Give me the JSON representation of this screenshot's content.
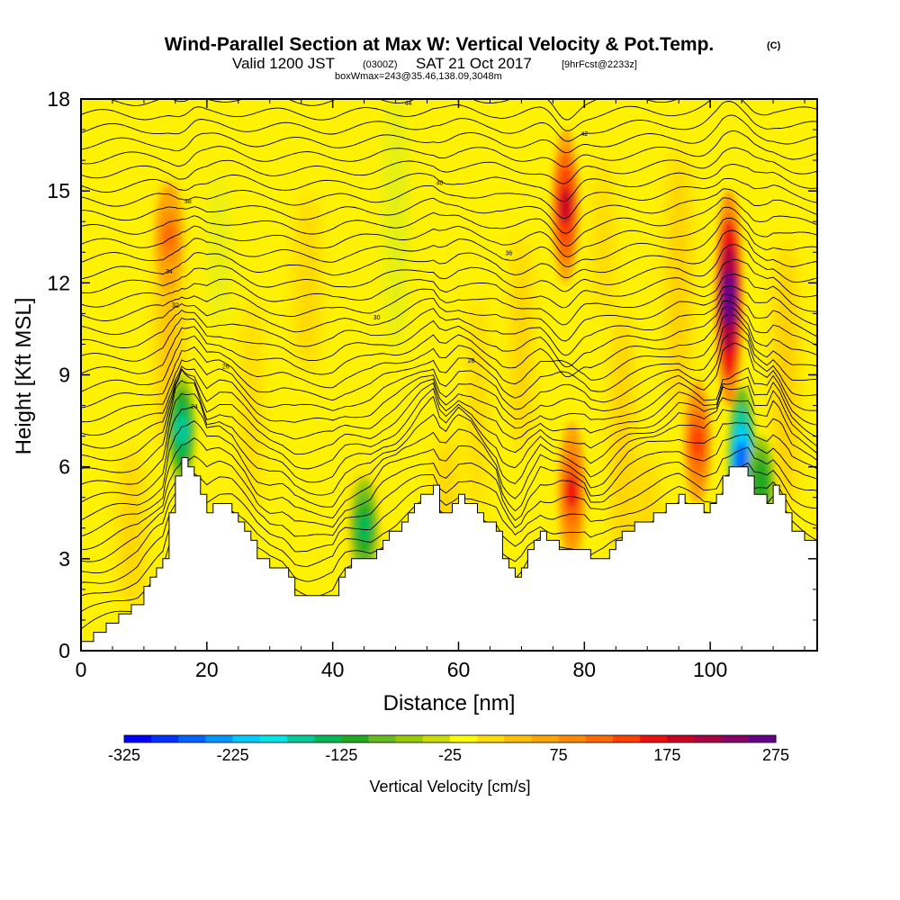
{
  "header": {
    "title": "Wind-Parallel Section at Max W: Vertical Velocity & Pot.Temp.",
    "copyright": "(C)",
    "valid_prefix": "Valid 1200 JST",
    "valid_utc": "(0300Z)",
    "valid_date": "SAT 21 Oct 2017",
    "forecast": "[9hrFcst@2233z]",
    "box_info": "boxWmax=243@35.46,138.09,3048m"
  },
  "chart_data": {
    "type": "heatmap",
    "xlabel": "Distance [nm]",
    "ylabel": "Height [Kft MSL]",
    "xlim": [
      0,
      117
    ],
    "ylim": [
      0,
      18
    ],
    "x_ticks": [
      "0",
      "20",
      "40",
      "60",
      "80",
      "100"
    ],
    "y_ticks": [
      "0",
      "3",
      "6",
      "9",
      "12",
      "15",
      "18"
    ],
    "colorbar": {
      "label": "Vertical Velocity [cm/s]",
      "tick_labels": [
        "-325",
        "-225",
        "-125",
        "-25",
        "75",
        "175",
        "275"
      ],
      "range": [
        -325,
        275
      ],
      "colors": [
        "#0000ff",
        "#0033ff",
        "#0066ff",
        "#0099ff",
        "#00ccff",
        "#00e5e5",
        "#00cc99",
        "#00bb55",
        "#22aa22",
        "#66bb22",
        "#99cc00",
        "#ccdd00",
        "#ffff00",
        "#ffdd00",
        "#ffc000",
        "#ffa500",
        "#ff8c00",
        "#ff6a00",
        "#ff4000",
        "#ee1010",
        "#cc0022",
        "#aa0044",
        "#880066",
        "#660088"
      ]
    },
    "terrain_kft": [
      [
        0,
        0.3
      ],
      [
        3,
        0.7
      ],
      [
        6,
        1.2
      ],
      [
        9,
        1.6
      ],
      [
        11,
        2.3
      ],
      [
        13,
        3.0
      ],
      [
        14,
        4.5
      ],
      [
        15,
        5.6
      ],
      [
        16,
        6.2
      ],
      [
        18,
        5.8
      ],
      [
        19,
        5.2
      ],
      [
        20,
        4.6
      ],
      [
        22,
        4.8
      ],
      [
        24,
        4.6
      ],
      [
        26,
        3.9
      ],
      [
        28,
        3.1
      ],
      [
        30,
        2.7
      ],
      [
        32,
        2.6
      ],
      [
        33,
        2.3
      ],
      [
        34,
        1.9
      ],
      [
        36,
        1.7
      ],
      [
        38,
        1.7
      ],
      [
        40,
        1.8
      ],
      [
        41,
        2.4
      ],
      [
        42,
        2.8
      ],
      [
        44,
        3.0
      ],
      [
        46,
        3.1
      ],
      [
        48,
        3.7
      ],
      [
        50,
        4.0
      ],
      [
        52,
        4.5
      ],
      [
        54,
        5.0
      ],
      [
        56,
        5.3
      ],
      [
        57,
        4.6
      ],
      [
        58,
        4.4
      ],
      [
        60,
        5.0
      ],
      [
        62,
        4.8
      ],
      [
        64,
        4.3
      ],
      [
        66,
        3.8
      ],
      [
        67,
        3.0
      ],
      [
        68,
        2.6
      ],
      [
        69,
        2.3
      ],
      [
        70,
        2.6
      ],
      [
        71,
        3.2
      ],
      [
        73,
        3.9
      ],
      [
        75,
        3.5
      ],
      [
        77,
        3.3
      ],
      [
        79,
        3.3
      ],
      [
        80,
        3.3
      ],
      [
        81,
        2.9
      ],
      [
        83,
        3.1
      ],
      [
        85,
        3.6
      ],
      [
        87,
        4.0
      ],
      [
        89,
        4.2
      ],
      [
        91,
        4.4
      ],
      [
        93,
        4.7
      ],
      [
        95,
        5.0
      ],
      [
        97,
        4.8
      ],
      [
        99,
        4.6
      ],
      [
        101,
        5.0
      ],
      [
        102,
        5.8
      ],
      [
        104,
        5.9
      ],
      [
        106,
        5.8
      ],
      [
        107,
        5.1
      ],
      [
        109,
        4.9
      ],
      [
        110,
        5.3
      ],
      [
        111,
        5.0
      ],
      [
        113,
        4.0
      ],
      [
        115,
        3.6
      ],
      [
        117,
        3.3
      ]
    ],
    "isentropes_label_values": [
      "44",
      "42",
      "40",
      "38",
      "36",
      "34",
      "32",
      "30",
      "28",
      "26",
      "24"
    ],
    "updraft_cores_cm_s": [
      {
        "x_nm": 103,
        "z_kft": 11.5,
        "w": 275
      },
      {
        "x_nm": 77,
        "z_kft": 14.5,
        "w": 175
      },
      {
        "x_nm": 78,
        "z_kft": 5.2,
        "w": 150
      },
      {
        "x_nm": 98,
        "z_kft": 6.8,
        "w": 125
      },
      {
        "x_nm": 14,
        "z_kft": 13.5,
        "w": 100
      }
    ],
    "downdraft_cores_cm_s": [
      {
        "x_nm": 105,
        "z_kft": 6.2,
        "w": -275
      },
      {
        "x_nm": 16,
        "z_kft": 7.2,
        "w": -175
      },
      {
        "x_nm": 45,
        "z_kft": 4.0,
        "w": -150
      },
      {
        "x_nm": 108,
        "z_kft": 5.5,
        "w": -125
      }
    ]
  }
}
